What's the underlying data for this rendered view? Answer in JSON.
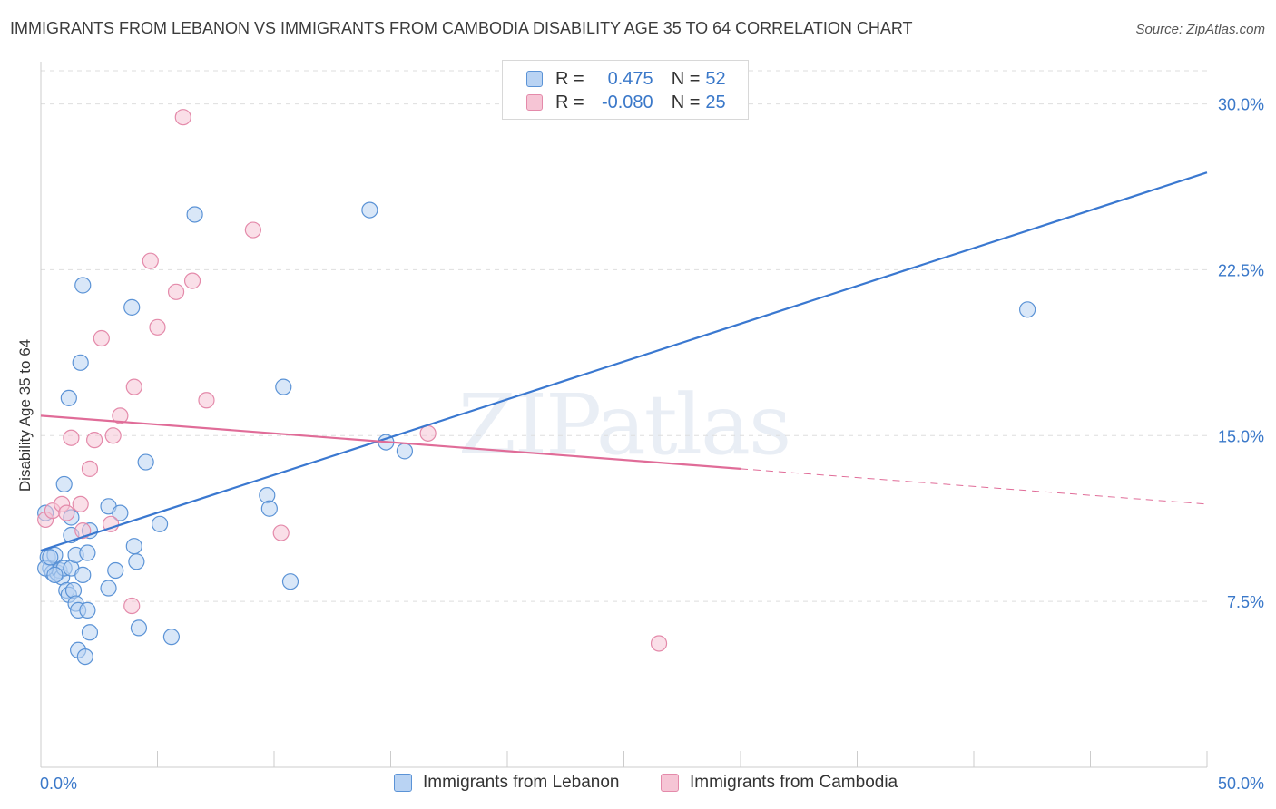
{
  "title": "IMMIGRANTS FROM LEBANON VS IMMIGRANTS FROM CAMBODIA DISABILITY AGE 35 TO 64 CORRELATION CHART",
  "source": "Source: ZipAtlas.com",
  "watermark": "ZIPatlas",
  "colors": {
    "lebanon_fill": "#b9d3f3",
    "lebanon_stroke": "#5b93d6",
    "lebanon_line": "#3a78d0",
    "cambodia_fill": "#f6c5d5",
    "cambodia_stroke": "#e48aaa",
    "cambodia_line": "#e06c98",
    "tick_label": "#3a78c9",
    "grid": "#dedede"
  },
  "legend": {
    "rows": [
      {
        "r_label": "R =",
        "r_value": "0.475",
        "n_label": "N =",
        "n_value": "52"
      },
      {
        "r_label": "R =",
        "r_value": "-0.080",
        "n_label": "N =",
        "n_value": "25"
      }
    ]
  },
  "chart_data": {
    "type": "scatter",
    "title": "IMMIGRANTS FROM LEBANON VS IMMIGRANTS FROM CAMBODIA DISABILITY AGE 35 TO 64 CORRELATION CHART",
    "xlabel": "",
    "ylabel": "Disability Age 35 to 64",
    "xlim": [
      0,
      50
    ],
    "ylim": [
      0,
      31.5
    ],
    "x_tick_labels": [
      "0.0%",
      "50.0%"
    ],
    "y_ticks": [
      7.5,
      15.0,
      22.5,
      30.0
    ],
    "y_tick_labels": [
      "7.5%",
      "15.0%",
      "22.5%",
      "30.0%"
    ],
    "grid": true,
    "legend_position": "bottom",
    "series": [
      {
        "name": "Immigrants from Lebanon",
        "color": "#5b93d6",
        "points": [
          [
            0.2,
            11.5
          ],
          [
            0.3,
            9.5
          ],
          [
            0.4,
            9.0
          ],
          [
            0.5,
            8.8
          ],
          [
            0.6,
            9.6
          ],
          [
            0.7,
            8.8
          ],
          [
            0.8,
            8.9
          ],
          [
            0.9,
            8.6
          ],
          [
            1.0,
            9.0
          ],
          [
            1.0,
            12.8
          ],
          [
            1.1,
            8.0
          ],
          [
            1.2,
            7.8
          ],
          [
            1.3,
            9.0
          ],
          [
            1.2,
            16.7
          ],
          [
            1.3,
            10.5
          ],
          [
            1.3,
            11.3
          ],
          [
            1.4,
            8.0
          ],
          [
            1.5,
            9.6
          ],
          [
            1.5,
            7.4
          ],
          [
            1.6,
            5.3
          ],
          [
            1.6,
            7.1
          ],
          [
            1.7,
            18.3
          ],
          [
            1.8,
            21.8
          ],
          [
            1.8,
            8.7
          ],
          [
            1.9,
            5.0
          ],
          [
            2.0,
            9.7
          ],
          [
            2.0,
            7.1
          ],
          [
            2.1,
            10.7
          ],
          [
            2.1,
            6.1
          ],
          [
            2.9,
            11.8
          ],
          [
            2.9,
            8.1
          ],
          [
            3.2,
            8.9
          ],
          [
            3.4,
            11.5
          ],
          [
            3.9,
            20.8
          ],
          [
            4.0,
            10.0
          ],
          [
            4.1,
            9.3
          ],
          [
            4.2,
            6.3
          ],
          [
            4.5,
            13.8
          ],
          [
            5.1,
            11.0
          ],
          [
            5.6,
            5.9
          ],
          [
            6.6,
            25.0
          ],
          [
            9.7,
            12.3
          ],
          [
            9.8,
            11.7
          ],
          [
            10.4,
            17.2
          ],
          [
            10.7,
            8.4
          ],
          [
            14.1,
            25.2
          ],
          [
            14.8,
            14.7
          ],
          [
            15.6,
            14.3
          ],
          [
            42.3,
            20.7
          ],
          [
            0.2,
            9.0
          ],
          [
            0.4,
            9.5
          ],
          [
            0.6,
            8.7
          ]
        ]
      },
      {
        "name": "Immigrants from Cambodia",
        "color": "#e48aaa",
        "points": [
          [
            0.2,
            11.2
          ],
          [
            0.5,
            11.6
          ],
          [
            0.9,
            11.9
          ],
          [
            1.1,
            11.5
          ],
          [
            1.3,
            14.9
          ],
          [
            1.7,
            11.9
          ],
          [
            1.8,
            10.7
          ],
          [
            2.1,
            13.5
          ],
          [
            2.3,
            14.8
          ],
          [
            2.6,
            19.4
          ],
          [
            3.0,
            11.0
          ],
          [
            3.1,
            15.0
          ],
          [
            3.4,
            15.9
          ],
          [
            3.9,
            7.3
          ],
          [
            4.0,
            17.2
          ],
          [
            4.7,
            22.9
          ],
          [
            5.0,
            19.9
          ],
          [
            5.8,
            21.5
          ],
          [
            6.1,
            29.4
          ],
          [
            6.5,
            22.0
          ],
          [
            7.1,
            16.6
          ],
          [
            9.1,
            24.3
          ],
          [
            10.3,
            10.6
          ],
          [
            16.6,
            15.1
          ],
          [
            26.5,
            5.6
          ]
        ]
      }
    ],
    "trend_lines": [
      {
        "series": "Immigrants from Lebanon",
        "x": [
          0,
          50
        ],
        "y": [
          9.8,
          26.9
        ],
        "dashed_from": null
      },
      {
        "series": "Immigrants from Cambodia",
        "x": [
          0,
          50
        ],
        "y": [
          15.9,
          11.9
        ],
        "dashed_from": 30
      }
    ]
  }
}
